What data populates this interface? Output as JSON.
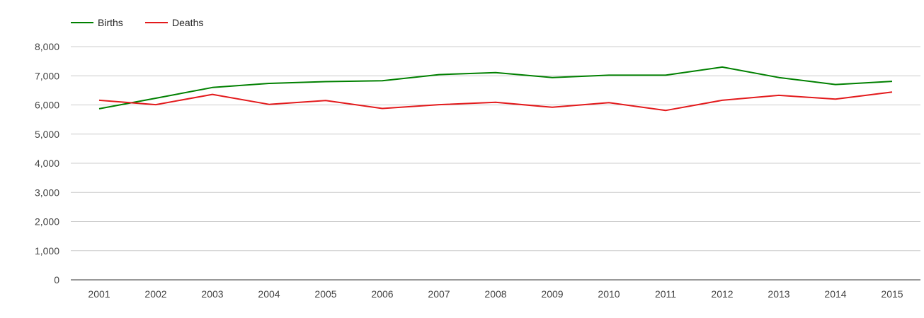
{
  "chart_data": {
    "type": "line",
    "x": [
      "2001",
      "2002",
      "2003",
      "2004",
      "2005",
      "2006",
      "2007",
      "2008",
      "2009",
      "2010",
      "2011",
      "2012",
      "2013",
      "2014",
      "2015"
    ],
    "series": [
      {
        "name": "Births",
        "color": "#008000",
        "values": [
          5870,
          6230,
          6600,
          6740,
          6800,
          6830,
          7040,
          7110,
          6940,
          7020,
          7020,
          7300,
          6940,
          6700,
          6810
        ]
      },
      {
        "name": "Deaths",
        "color": "#e31a1c",
        "values": [
          6160,
          6010,
          6360,
          6020,
          6150,
          5880,
          6010,
          6090,
          5920,
          6080,
          5810,
          6160,
          6330,
          6200,
          6440
        ]
      }
    ],
    "ylim": [
      0,
      8000
    ],
    "yticks": [
      "0",
      "1,000",
      "2,000",
      "3,000",
      "4,000",
      "5,000",
      "6,000",
      "7,000",
      "8,000"
    ],
    "ytick_values": [
      0,
      1000,
      2000,
      3000,
      4000,
      5000,
      6000,
      7000,
      8000
    ],
    "grid": true,
    "legend_position": "top-left",
    "title": "",
    "xlabel": "",
    "ylabel": ""
  }
}
